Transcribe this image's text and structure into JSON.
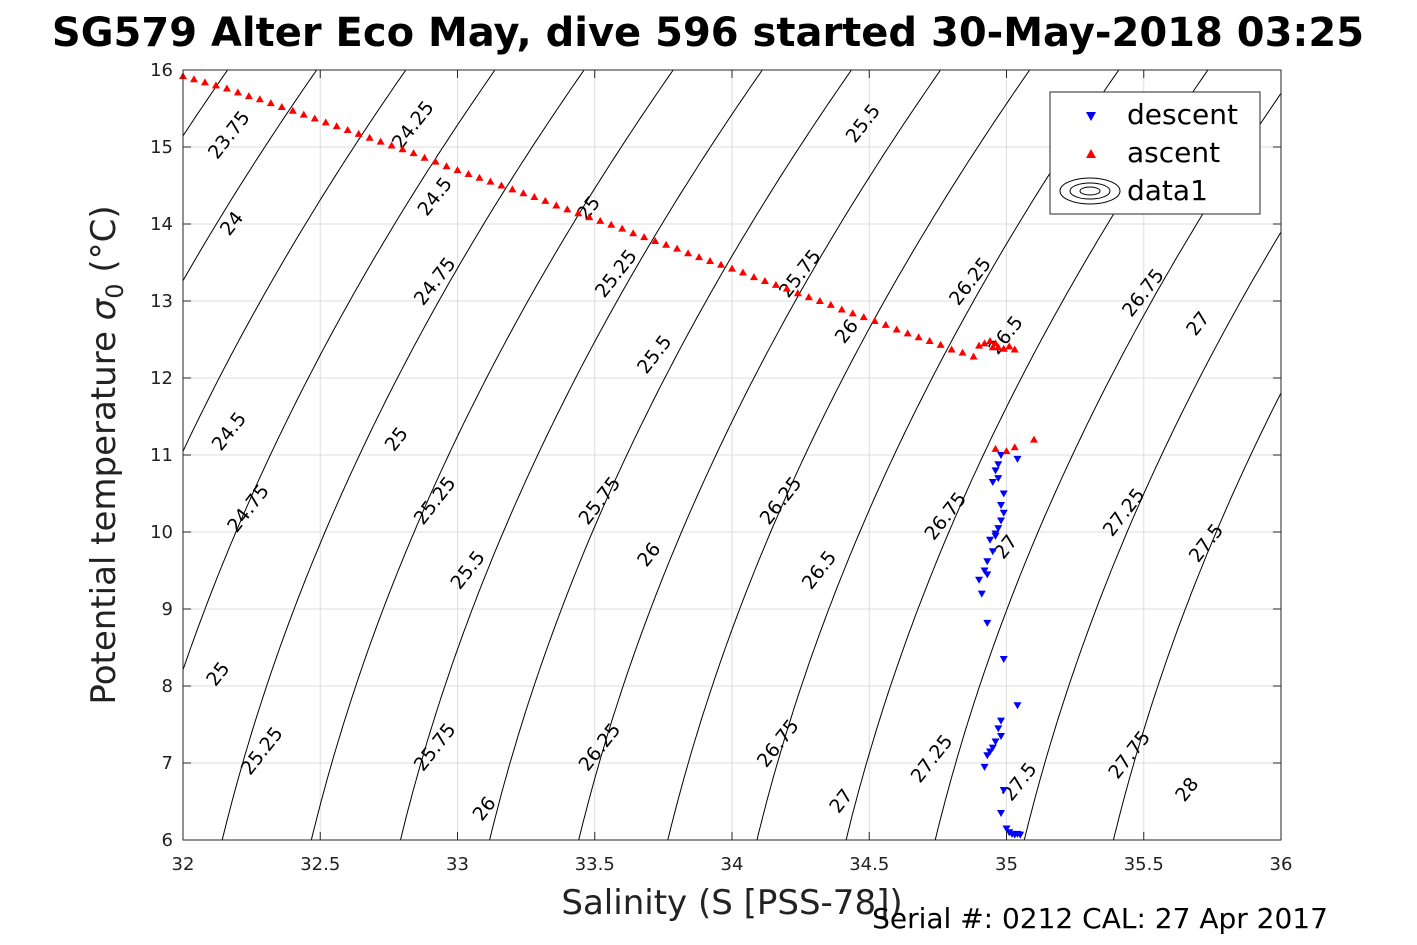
{
  "chart_data": {
    "type": "scatter",
    "title": "SG579 Alter Eco May, dive 596 started 30-May-2018 03:25",
    "xlabel": "Salinity (S [PSS-78])",
    "ylabel_main": "Potential temperature ",
    "ylabel_sigma": "σ",
    "ylabel_sub": "0",
    "ylabel_unit": " (°C)",
    "footer": "Serial #: 0212  CAL: 27 Apr 2017",
    "xlim": [
      32,
      36
    ],
    "ylim": [
      6,
      16
    ],
    "xticks": [
      "32",
      "32.5",
      "33",
      "33.5",
      "34",
      "34.5",
      "35",
      "35.5",
      "36"
    ],
    "yticks": [
      "6",
      "7",
      "8",
      "9",
      "10",
      "11",
      "12",
      "13",
      "14",
      "15",
      "16"
    ],
    "grid": true,
    "legend_position": "top-right",
    "legend": [
      {
        "label": "descent",
        "marker": "triangle-down",
        "color": "#0000ff"
      },
      {
        "label": "ascent",
        "marker": "triangle-up",
        "color": "#ff0000"
      },
      {
        "label": "data1",
        "marker": "contour",
        "color": "#000000"
      }
    ],
    "contour_levels": [
      "23.75",
      "24",
      "24.25",
      "24.5",
      "24.75",
      "25",
      "25.25",
      "25.5",
      "25.75",
      "26",
      "26.25",
      "26.5",
      "26.75",
      "27",
      "27.25",
      "27.5",
      "27.75",
      "28"
    ],
    "contour_labels": [
      {
        "text": "23.75",
        "s": 32.17,
        "t": 15.15
      },
      {
        "text": "24",
        "s": 32.18,
        "t": 14.0
      },
      {
        "text": "24.25",
        "s": 32.84,
        "t": 15.28
      },
      {
        "text": "24.5",
        "s": 32.17,
        "t": 11.3
      },
      {
        "text": "24.5",
        "s": 32.92,
        "t": 14.35
      },
      {
        "text": "24.75",
        "s": 32.24,
        "t": 10.3
      },
      {
        "text": "24.75",
        "s": 32.92,
        "t": 13.25
      },
      {
        "text": "25",
        "s": 32.13,
        "t": 8.15
      },
      {
        "text": "25",
        "s": 32.78,
        "t": 11.2
      },
      {
        "text": "25",
        "s": 33.48,
        "t": 14.2
      },
      {
        "text": "25.25",
        "s": 32.29,
        "t": 7.15
      },
      {
        "text": "25.25",
        "s": 32.92,
        "t": 10.4
      },
      {
        "text": "25.25",
        "s": 33.58,
        "t": 13.35
      },
      {
        "text": "25.5",
        "s": 33.04,
        "t": 9.5
      },
      {
        "text": "25.5",
        "s": 33.72,
        "t": 12.3
      },
      {
        "text": "25.5",
        "s": 34.48,
        "t": 15.3
      },
      {
        "text": "25.75",
        "s": 32.92,
        "t": 7.2
      },
      {
        "text": "25.75",
        "s": 33.52,
        "t": 10.4
      },
      {
        "text": "25.75",
        "s": 34.25,
        "t": 13.35
      },
      {
        "text": "26",
        "s": 33.1,
        "t": 6.4
      },
      {
        "text": "26",
        "s": 33.7,
        "t": 9.7
      },
      {
        "text": "26",
        "s": 34.42,
        "t": 12.6
      },
      {
        "text": "26.25",
        "s": 33.52,
        "t": 7.2
      },
      {
        "text": "26.25",
        "s": 34.18,
        "t": 10.4
      },
      {
        "text": "26.25",
        "s": 34.87,
        "t": 13.25
      },
      {
        "text": "26.5",
        "s": 34.32,
        "t": 9.5
      },
      {
        "text": "26.5",
        "s": 35.0,
        "t": 12.55
      },
      {
        "text": "26.75",
        "s": 34.17,
        "t": 7.25
      },
      {
        "text": "26.75",
        "s": 34.78,
        "t": 10.2
      },
      {
        "text": "26.75",
        "s": 35.5,
        "t": 13.1
      },
      {
        "text": "27",
        "s": 34.4,
        "t": 6.5
      },
      {
        "text": "27",
        "s": 35.0,
        "t": 9.8
      },
      {
        "text": "27",
        "s": 35.7,
        "t": 12.7
      },
      {
        "text": "27.25",
        "s": 34.73,
        "t": 7.05
      },
      {
        "text": "27.25",
        "s": 35.43,
        "t": 10.25
      },
      {
        "text": "27.5",
        "s": 35.05,
        "t": 6.75
      },
      {
        "text": "27.5",
        "s": 35.73,
        "t": 9.85
      },
      {
        "text": "27.75",
        "s": 35.45,
        "t": 7.1
      },
      {
        "text": "28",
        "s": 35.66,
        "t": 6.65
      }
    ],
    "series": [
      {
        "name": "descent",
        "marker": "triangle-down",
        "color": "#0000ff",
        "points": [
          [
            34.98,
            11.0
          ],
          [
            35.04,
            10.95
          ],
          [
            34.97,
            10.88
          ],
          [
            34.96,
            10.8
          ],
          [
            34.97,
            10.7
          ],
          [
            34.95,
            10.65
          ],
          [
            34.99,
            10.5
          ],
          [
            34.98,
            10.35
          ],
          [
            34.99,
            10.25
          ],
          [
            34.98,
            10.15
          ],
          [
            34.97,
            10.05
          ],
          [
            34.96,
            9.98
          ],
          [
            34.94,
            9.9
          ],
          [
            34.96,
            9.95
          ],
          [
            34.95,
            9.75
          ],
          [
            34.93,
            9.62
          ],
          [
            34.92,
            9.5
          ],
          [
            34.93,
            9.45
          ],
          [
            34.9,
            9.38
          ],
          [
            34.91,
            9.2
          ],
          [
            34.93,
            8.82
          ],
          [
            34.99,
            8.35
          ],
          [
            35.04,
            7.75
          ],
          [
            34.98,
            7.55
          ],
          [
            34.97,
            7.45
          ],
          [
            34.98,
            7.35
          ],
          [
            34.96,
            7.28
          ],
          [
            34.95,
            7.2
          ],
          [
            34.94,
            7.15
          ],
          [
            34.93,
            7.1
          ],
          [
            34.92,
            6.95
          ],
          [
            34.99,
            6.65
          ],
          [
            34.98,
            6.35
          ],
          [
            35.0,
            6.15
          ],
          [
            35.01,
            6.1
          ],
          [
            35.02,
            6.08
          ],
          [
            35.03,
            6.07
          ],
          [
            35.04,
            6.08
          ],
          [
            35.05,
            6.07
          ]
        ]
      },
      {
        "name": "ascent",
        "marker": "triangle-up",
        "color": "#ff0000",
        "points": [
          [
            32.0,
            15.92
          ],
          [
            32.04,
            15.88
          ],
          [
            32.08,
            15.84
          ],
          [
            32.12,
            15.8
          ],
          [
            32.16,
            15.76
          ],
          [
            32.2,
            15.71
          ],
          [
            32.24,
            15.66
          ],
          [
            32.28,
            15.62
          ],
          [
            32.32,
            15.57
          ],
          [
            32.36,
            15.52
          ],
          [
            32.4,
            15.47
          ],
          [
            32.44,
            15.42
          ],
          [
            32.48,
            15.37
          ],
          [
            32.52,
            15.32
          ],
          [
            32.56,
            15.27
          ],
          [
            32.6,
            15.22
          ],
          [
            32.64,
            15.17
          ],
          [
            32.68,
            15.12
          ],
          [
            32.72,
            15.07
          ],
          [
            32.76,
            15.02
          ],
          [
            32.8,
            14.97
          ],
          [
            32.84,
            14.92
          ],
          [
            32.88,
            14.86
          ],
          [
            32.92,
            14.81
          ],
          [
            32.96,
            14.75
          ],
          [
            33.0,
            14.7
          ],
          [
            33.04,
            14.65
          ],
          [
            33.08,
            14.6
          ],
          [
            33.12,
            14.55
          ],
          [
            33.16,
            14.5
          ],
          [
            33.2,
            14.45
          ],
          [
            33.24,
            14.4
          ],
          [
            33.28,
            14.35
          ],
          [
            33.32,
            14.3
          ],
          [
            33.36,
            14.24
          ],
          [
            33.4,
            14.19
          ],
          [
            33.44,
            14.14
          ],
          [
            33.48,
            14.09
          ],
          [
            33.52,
            14.04
          ],
          [
            33.56,
            13.99
          ],
          [
            33.6,
            13.94
          ],
          [
            33.64,
            13.88
          ],
          [
            33.68,
            13.83
          ],
          [
            33.72,
            13.78
          ],
          [
            33.76,
            13.73
          ],
          [
            33.8,
            13.68
          ],
          [
            33.84,
            13.62
          ],
          [
            33.88,
            13.57
          ],
          [
            33.92,
            13.52
          ],
          [
            33.96,
            13.47
          ],
          [
            34.0,
            13.42
          ],
          [
            34.04,
            13.37
          ],
          [
            34.08,
            13.31
          ],
          [
            34.12,
            13.26
          ],
          [
            34.16,
            13.21
          ],
          [
            34.2,
            13.16
          ],
          [
            34.24,
            13.1
          ],
          [
            34.28,
            13.05
          ],
          [
            34.32,
            13.0
          ],
          [
            34.36,
            12.95
          ],
          [
            34.4,
            12.89
          ],
          [
            34.44,
            12.84
          ],
          [
            34.48,
            12.79
          ],
          [
            34.52,
            12.74
          ],
          [
            34.56,
            12.69
          ],
          [
            34.6,
            12.63
          ],
          [
            34.64,
            12.58
          ],
          [
            34.68,
            12.53
          ],
          [
            34.72,
            12.48
          ],
          [
            34.76,
            12.43
          ],
          [
            34.8,
            12.37
          ],
          [
            34.84,
            12.33
          ],
          [
            34.88,
            12.28
          ],
          [
            34.9,
            12.42
          ],
          [
            34.92,
            12.45
          ],
          [
            34.94,
            12.48
          ],
          [
            34.95,
            12.4
          ],
          [
            34.96,
            12.45
          ],
          [
            34.97,
            12.4
          ],
          [
            34.99,
            12.38
          ],
          [
            35.01,
            12.41
          ],
          [
            35.03,
            12.37
          ],
          [
            34.96,
            11.08
          ],
          [
            35.0,
            11.05
          ],
          [
            35.03,
            11.1
          ],
          [
            35.1,
            11.2
          ]
        ]
      }
    ]
  }
}
